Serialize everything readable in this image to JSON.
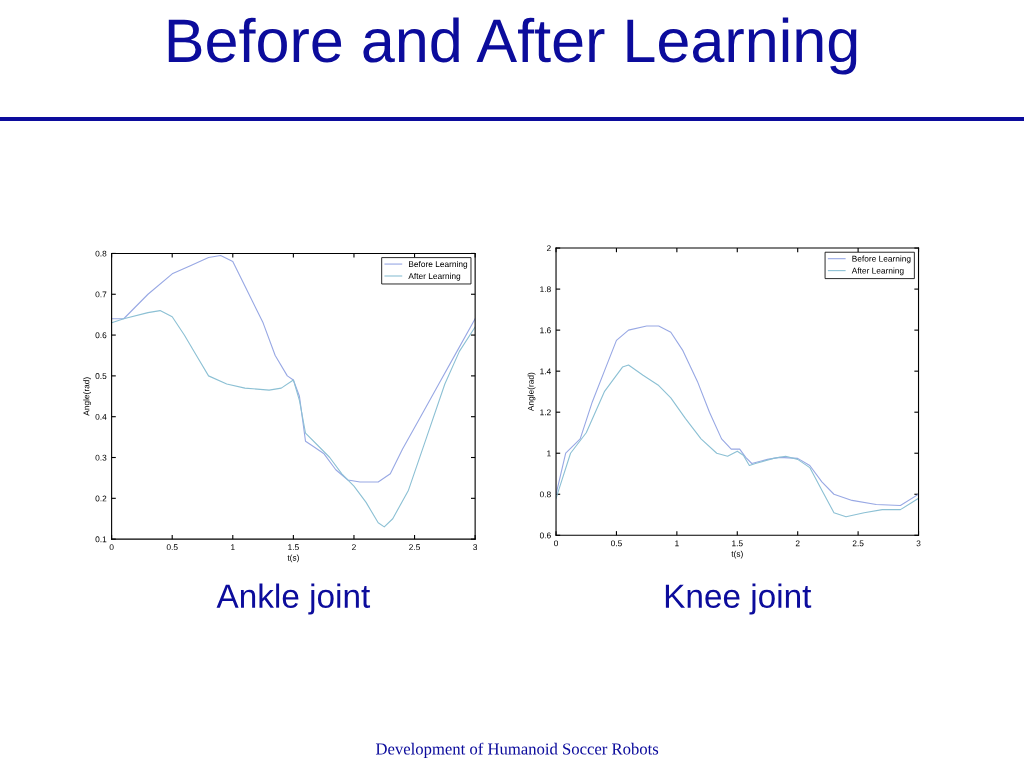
{
  "chart_data": [
    {
      "type": "other",
      "title": "Before and After Learning",
      "annotations": [
        "Development of Humanoid Soccer Robots"
      ]
    },
    {
      "type": "line",
      "xlabel": "t(s)",
      "ylabel": "Angle(rad)",
      "annotations": [
        "Ankle joint"
      ],
      "xlim": [
        0,
        3
      ],
      "ylim": [
        0.1,
        0.8
      ],
      "xticks": [
        0,
        0.5,
        1,
        1.5,
        2,
        2.5,
        3
      ],
      "yticks": [
        0.1,
        0.2,
        0.3,
        0.4,
        0.5,
        0.6,
        0.7,
        0.8
      ],
      "grid": false,
      "legend": "top right",
      "marker": "none",
      "line_style": "solid",
      "series": [
        {
          "name": "Before Learning",
          "color": "#98a8e4",
          "x": [
            0,
            0.1,
            0.3,
            0.5,
            0.65,
            0.8,
            0.9,
            1.0,
            1.1,
            1.25,
            1.35,
            1.45,
            1.5,
            1.55,
            1.6,
            1.65,
            1.75,
            1.85,
            1.95,
            2.05,
            2.2,
            2.3,
            2.4,
            2.55,
            2.7,
            2.85,
            3
          ],
          "values": [
            0.64,
            0.64,
            0.7,
            0.75,
            0.77,
            0.79,
            0.795,
            0.78,
            0.72,
            0.63,
            0.55,
            0.5,
            0.49,
            0.45,
            0.34,
            0.33,
            0.31,
            0.27,
            0.245,
            0.24,
            0.24,
            0.26,
            0.32,
            0.4,
            0.48,
            0.56,
            0.64
          ]
        },
        {
          "name": "After Learning",
          "color": "#8cc0d4",
          "x": [
            0,
            0.1,
            0.3,
            0.4,
            0.5,
            0.6,
            0.7,
            0.8,
            0.95,
            1.1,
            1.3,
            1.4,
            1.5,
            1.55,
            1.6,
            1.7,
            1.8,
            1.9,
            2.0,
            2.1,
            2.2,
            2.25,
            2.32,
            2.45,
            2.6,
            2.75,
            2.87,
            3
          ],
          "values": [
            0.63,
            0.64,
            0.655,
            0.66,
            0.645,
            0.6,
            0.55,
            0.5,
            0.48,
            0.47,
            0.465,
            0.47,
            0.49,
            0.44,
            0.36,
            0.33,
            0.3,
            0.26,
            0.23,
            0.19,
            0.14,
            0.13,
            0.15,
            0.22,
            0.35,
            0.48,
            0.56,
            0.62
          ]
        }
      ]
    },
    {
      "type": "line",
      "xlabel": "t(s)",
      "ylabel": "Angle(rad)",
      "annotations": [
        "Knee joint"
      ],
      "xlim": [
        0,
        3
      ],
      "ylim": [
        0.6,
        2
      ],
      "xticks": [
        0,
        0.5,
        1,
        1.5,
        2,
        2.5,
        3
      ],
      "yticks": [
        0.6,
        0.8,
        1,
        1.2,
        1.4,
        1.6,
        1.8,
        2
      ],
      "grid": false,
      "legend": "top right",
      "marker": "none",
      "line_style": "solid",
      "series": [
        {
          "name": "Before Learning",
          "color": "#98a8e4",
          "x": [
            0,
            0.08,
            0.2,
            0.3,
            0.4,
            0.5,
            0.6,
            0.75,
            0.85,
            0.95,
            1.05,
            1.17,
            1.27,
            1.37,
            1.45,
            1.52,
            1.57,
            1.62,
            1.75,
            1.85,
            2.0,
            2.1,
            2.2,
            2.3,
            2.45,
            2.65,
            2.85,
            3
          ],
          "values": [
            0.8,
            1.0,
            1.07,
            1.25,
            1.4,
            1.55,
            1.6,
            1.62,
            1.62,
            1.59,
            1.5,
            1.35,
            1.2,
            1.07,
            1.02,
            1.02,
            0.98,
            0.95,
            0.97,
            0.98,
            0.975,
            0.94,
            0.86,
            0.8,
            0.77,
            0.75,
            0.745,
            0.8
          ]
        },
        {
          "name": "After Learning",
          "color": "#8cc0d4",
          "x": [
            0,
            0.12,
            0.25,
            0.4,
            0.55,
            0.6,
            0.72,
            0.85,
            0.95,
            1.07,
            1.2,
            1.33,
            1.42,
            1.5,
            1.55,
            1.6,
            1.65,
            1.8,
            1.9,
            2.0,
            2.1,
            2.2,
            2.3,
            2.4,
            2.55,
            2.7,
            2.85,
            3
          ],
          "values": [
            0.78,
            1.0,
            1.1,
            1.3,
            1.42,
            1.43,
            1.38,
            1.33,
            1.27,
            1.17,
            1.07,
            1.0,
            0.985,
            1.01,
            0.99,
            0.94,
            0.95,
            0.975,
            0.985,
            0.97,
            0.93,
            0.82,
            0.71,
            0.69,
            0.71,
            0.725,
            0.725,
            0.78
          ]
        }
      ]
    }
  ]
}
